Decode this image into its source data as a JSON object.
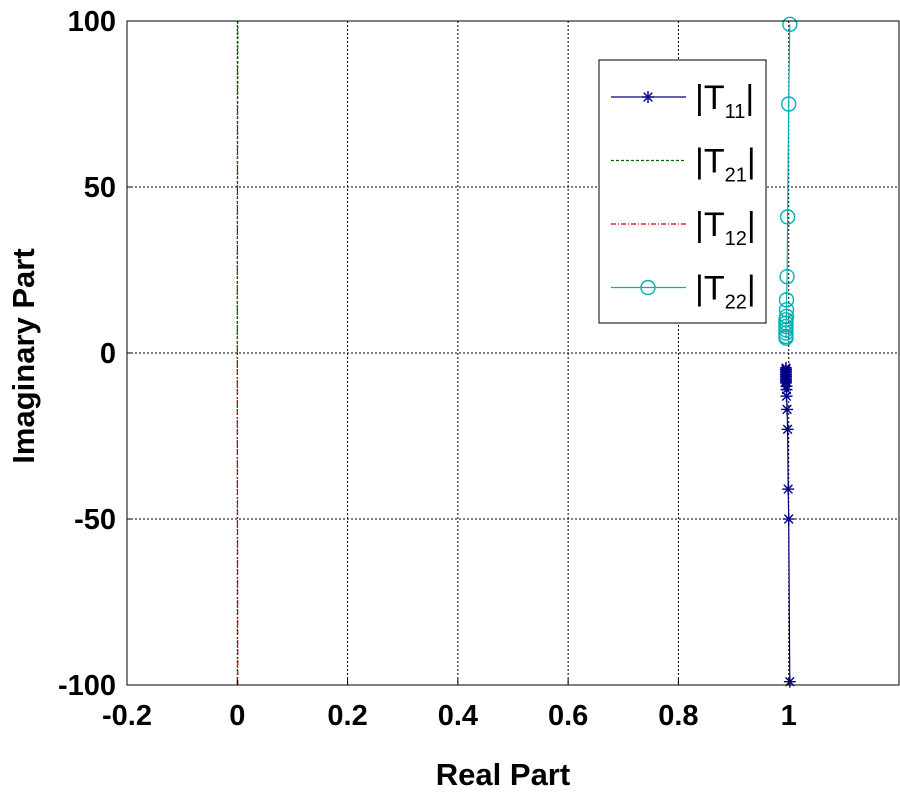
{
  "chart_data": {
    "type": "line",
    "title": "",
    "xlabel": "Real Part",
    "ylabel": "Imaginary Part",
    "xlim": [
      -0.2,
      1.2
    ],
    "ylim": [
      -100,
      100
    ],
    "xticks": [
      -0.2,
      0,
      0.2,
      0.4,
      0.6,
      0.8,
      1
    ],
    "xtick_labels": [
      "-0.2",
      "0",
      "0.2",
      "0.4",
      "0.6",
      "0.8",
      "1"
    ],
    "yticks": [
      -100,
      -50,
      0,
      50,
      100
    ],
    "ytick_labels": [
      "-100",
      "-50",
      "0",
      "50",
      "100"
    ],
    "grid": true,
    "legend_position": "top-right",
    "series": [
      {
        "name": "|T11|",
        "legend_main": "|T",
        "legend_sub": "11",
        "legend_end": "|",
        "color": "#00008b",
        "line_style": "solid",
        "marker": "asterisk",
        "x": [
          1.002,
          1.0,
          0.999,
          0.998,
          0.997,
          0.996,
          0.996,
          0.996,
          0.995,
          0.995,
          0.995,
          0.995,
          0.995,
          0.995,
          0.995,
          0.995,
          0.995,
          0.995
        ],
        "y": [
          -99,
          -50,
          -41,
          -23,
          -17,
          -13,
          -11,
          -10,
          -9,
          -8.5,
          -8,
          -7.5,
          -7,
          -6.5,
          -6,
          -5.5,
          -5,
          -4.5
        ]
      },
      {
        "name": "|T21|",
        "legend_main": "|T",
        "legend_sub": "21",
        "legend_end": "|",
        "color": "#006400",
        "line_style": "dashed",
        "marker": "none",
        "x": [
          0.001,
          0.0005,
          0.0,
          0.0
        ],
        "y": [
          100,
          60,
          20,
          0
        ]
      },
      {
        "name": "|T12|",
        "legend_main": "|T",
        "legend_sub": "12",
        "legend_end": "|",
        "color": "#cd0000",
        "line_style": "dashdot",
        "marker": "none",
        "x": [
          0.001,
          0.0005,
          0.0,
          0.0
        ],
        "y": [
          -100,
          -60,
          -20,
          0
        ]
      },
      {
        "name": "|T22|",
        "legend_main": "|T",
        "legend_sub": "22",
        "legend_end": "|",
        "color": "#00b2b2",
        "line_style": "solid",
        "marker": "circle",
        "x": [
          1.002,
          1.0,
          0.998,
          0.997,
          0.996,
          0.996,
          0.996,
          0.995,
          0.995,
          0.995,
          0.995,
          0.995,
          0.995,
          0.995
        ],
        "y": [
          99,
          75,
          41,
          23,
          16,
          13,
          11,
          10,
          9,
          8,
          7,
          6,
          5,
          4.5
        ]
      }
    ]
  }
}
